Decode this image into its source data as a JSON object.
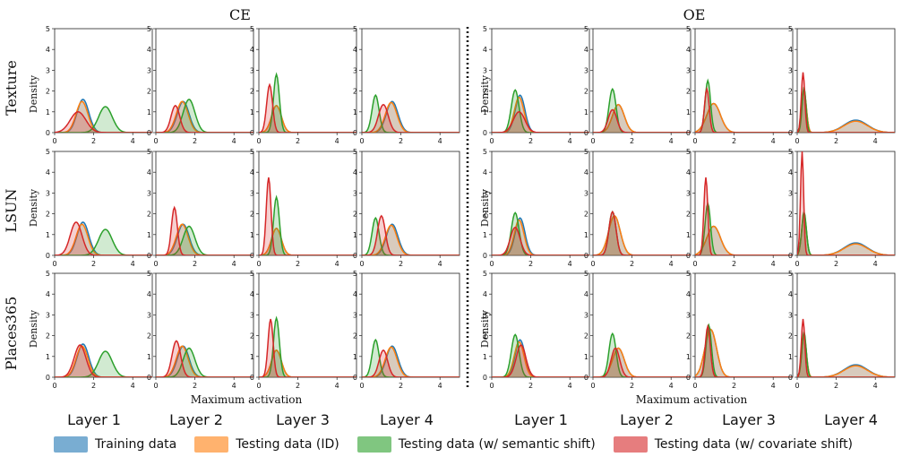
{
  "figure": {
    "methods": [
      "CE",
      "OE"
    ],
    "datasets": [
      "Texture",
      "LSUN",
      "Places365"
    ],
    "layers": [
      "Layer 1",
      "Layer 2",
      "Layer 3",
      "Layer 4"
    ],
    "ylabel": "Density",
    "xlabel": "Maximum activation"
  },
  "legend": [
    {
      "label": "Training data",
      "color": "#1f77b4"
    },
    {
      "label": "Testing data (ID)",
      "color": "#ff7f0e"
    },
    {
      "label": "Testing data (w/ semantic shift)",
      "color": "#2ca02c"
    },
    {
      "label": "Testing data (w/ covariate shift)",
      "color": "#d62728"
    }
  ],
  "chart_data": {
    "type": "area",
    "description_key": "kernel density curves; each curve given as peak location (mu), width (sigma) and peak density (h); OE layer-4 training/ID curves also have a second bump (mu2, sigma2, h2)",
    "xlim": [
      0,
      5
    ],
    "ylim": [
      0,
      5
    ],
    "xticks": [
      0,
      2,
      4
    ],
    "yticks": [
      0,
      1,
      2,
      3,
      4,
      5
    ],
    "series_names": [
      "Training data",
      "Testing data (ID)",
      "Testing data (w/ semantic shift)",
      "Testing data (w/ covariate shift)"
    ],
    "panels": [
      {
        "method": "CE",
        "dataset": "Texture",
        "layer": "Layer 1",
        "curves": [
          {
            "mu": 1.45,
            "sigma": 0.3,
            "h": 1.6
          },
          {
            "mu": 1.4,
            "sigma": 0.3,
            "h": 1.5
          },
          {
            "mu": 2.6,
            "sigma": 0.35,
            "h": 1.25
          },
          {
            "mu": 1.2,
            "sigma": 0.4,
            "h": 1.0
          }
        ]
      },
      {
        "method": "CE",
        "dataset": "Texture",
        "layer": "Layer 2",
        "curves": [
          {
            "mu": 1.4,
            "sigma": 0.3,
            "h": 1.5
          },
          {
            "mu": 1.35,
            "sigma": 0.3,
            "h": 1.5
          },
          {
            "mu": 1.7,
            "sigma": 0.3,
            "h": 1.6
          },
          {
            "mu": 1.0,
            "sigma": 0.22,
            "h": 1.3
          }
        ]
      },
      {
        "method": "CE",
        "dataset": "Texture",
        "layer": "Layer 3",
        "curves": [
          {
            "mu": 0.9,
            "sigma": 0.25,
            "h": 1.3
          },
          {
            "mu": 0.9,
            "sigma": 0.25,
            "h": 1.3
          },
          {
            "mu": 0.9,
            "sigma": 0.15,
            "h": 2.8
          },
          {
            "mu": 0.55,
            "sigma": 0.15,
            "h": 2.3
          }
        ]
      },
      {
        "method": "CE",
        "dataset": "Texture",
        "layer": "Layer 4",
        "curves": [
          {
            "mu": 1.55,
            "sigma": 0.3,
            "h": 1.5
          },
          {
            "mu": 1.5,
            "sigma": 0.3,
            "h": 1.45
          },
          {
            "mu": 0.7,
            "sigma": 0.18,
            "h": 1.8
          },
          {
            "mu": 1.1,
            "sigma": 0.25,
            "h": 1.35
          }
        ]
      },
      {
        "method": "OE",
        "dataset": "Texture",
        "layer": "Layer 1",
        "curves": [
          {
            "mu": 1.45,
            "sigma": 0.25,
            "h": 1.8
          },
          {
            "mu": 1.4,
            "sigma": 0.25,
            "h": 1.7
          },
          {
            "mu": 1.2,
            "sigma": 0.2,
            "h": 2.05
          },
          {
            "mu": 1.4,
            "sigma": 0.3,
            "h": 1.0
          }
        ]
      },
      {
        "method": "OE",
        "dataset": "Texture",
        "layer": "Layer 2",
        "curves": [
          {
            "mu": 1.3,
            "sigma": 0.3,
            "h": 1.35
          },
          {
            "mu": 1.3,
            "sigma": 0.3,
            "h": 1.35
          },
          {
            "mu": 1.0,
            "sigma": 0.18,
            "h": 2.1
          },
          {
            "mu": 1.0,
            "sigma": 0.22,
            "h": 1.1
          }
        ]
      },
      {
        "method": "OE",
        "dataset": "Texture",
        "layer": "Layer 3",
        "curves": [
          {
            "mu": 0.95,
            "sigma": 0.35,
            "h": 1.4
          },
          {
            "mu": 0.95,
            "sigma": 0.35,
            "h": 1.4
          },
          {
            "mu": 0.65,
            "sigma": 0.14,
            "h": 2.5
          },
          {
            "mu": 0.6,
            "sigma": 0.12,
            "h": 2.1
          }
        ]
      },
      {
        "method": "OE",
        "dataset": "Texture",
        "layer": "Layer 4",
        "curves": [
          {
            "mu": 0.35,
            "sigma": 0.12,
            "h": 2.0,
            "mu2": 3.0,
            "sigma2": 0.6,
            "h2": 0.6
          },
          {
            "mu": 0.35,
            "sigma": 0.12,
            "h": 2.0,
            "mu2": 3.0,
            "sigma2": 0.6,
            "h2": 0.55
          },
          {
            "mu": 0.35,
            "sigma": 0.1,
            "h": 2.2
          },
          {
            "mu": 0.3,
            "sigma": 0.09,
            "h": 2.9
          }
        ]
      },
      {
        "method": "CE",
        "dataset": "LSUN",
        "layer": "Layer 1",
        "curves": [
          {
            "mu": 1.45,
            "sigma": 0.3,
            "h": 1.6
          },
          {
            "mu": 1.4,
            "sigma": 0.3,
            "h": 1.5
          },
          {
            "mu": 2.6,
            "sigma": 0.35,
            "h": 1.25
          },
          {
            "mu": 1.1,
            "sigma": 0.3,
            "h": 1.6
          }
        ]
      },
      {
        "method": "CE",
        "dataset": "LSUN",
        "layer": "Layer 2",
        "curves": [
          {
            "mu": 1.4,
            "sigma": 0.3,
            "h": 1.5
          },
          {
            "mu": 1.35,
            "sigma": 0.3,
            "h": 1.5
          },
          {
            "mu": 1.7,
            "sigma": 0.3,
            "h": 1.4
          },
          {
            "mu": 0.95,
            "sigma": 0.15,
            "h": 2.3
          }
        ]
      },
      {
        "method": "CE",
        "dataset": "LSUN",
        "layer": "Layer 3",
        "curves": [
          {
            "mu": 0.9,
            "sigma": 0.25,
            "h": 1.3
          },
          {
            "mu": 0.9,
            "sigma": 0.25,
            "h": 1.3
          },
          {
            "mu": 0.9,
            "sigma": 0.15,
            "h": 2.8
          },
          {
            "mu": 0.5,
            "sigma": 0.12,
            "h": 3.75
          }
        ]
      },
      {
        "method": "CE",
        "dataset": "LSUN",
        "layer": "Layer 4",
        "curves": [
          {
            "mu": 1.55,
            "sigma": 0.3,
            "h": 1.5
          },
          {
            "mu": 1.5,
            "sigma": 0.3,
            "h": 1.45
          },
          {
            "mu": 0.7,
            "sigma": 0.18,
            "h": 1.8
          },
          {
            "mu": 1.0,
            "sigma": 0.2,
            "h": 1.9
          }
        ]
      },
      {
        "method": "OE",
        "dataset": "LSUN",
        "layer": "Layer 1",
        "curves": [
          {
            "mu": 1.45,
            "sigma": 0.25,
            "h": 1.8
          },
          {
            "mu": 1.4,
            "sigma": 0.25,
            "h": 1.7
          },
          {
            "mu": 1.2,
            "sigma": 0.2,
            "h": 2.05
          },
          {
            "mu": 1.2,
            "sigma": 0.25,
            "h": 1.35
          }
        ]
      },
      {
        "method": "OE",
        "dataset": "LSUN",
        "layer": "Layer 2",
        "curves": [
          {
            "mu": 1.1,
            "sigma": 0.3,
            "h": 1.9
          },
          {
            "mu": 1.1,
            "sigma": 0.3,
            "h": 1.9
          },
          {
            "mu": 1.0,
            "sigma": 0.18,
            "h": 2.1
          },
          {
            "mu": 1.0,
            "sigma": 0.18,
            "h": 2.1
          }
        ]
      },
      {
        "method": "OE",
        "dataset": "LSUN",
        "layer": "Layer 3",
        "curves": [
          {
            "mu": 0.95,
            "sigma": 0.35,
            "h": 1.4
          },
          {
            "mu": 0.95,
            "sigma": 0.35,
            "h": 1.4
          },
          {
            "mu": 0.65,
            "sigma": 0.14,
            "h": 2.5
          },
          {
            "mu": 0.55,
            "sigma": 0.1,
            "h": 3.75
          }
        ]
      },
      {
        "method": "OE",
        "dataset": "LSUN",
        "layer": "Layer 4",
        "curves": [
          {
            "mu": 0.35,
            "sigma": 0.12,
            "h": 2.0,
            "mu2": 3.0,
            "sigma2": 0.6,
            "h2": 0.6
          },
          {
            "mu": 0.35,
            "sigma": 0.12,
            "h": 2.0,
            "mu2": 3.0,
            "sigma2": 0.6,
            "h2": 0.55
          },
          {
            "mu": 0.35,
            "sigma": 0.12,
            "h": 2.1
          },
          {
            "mu": 0.25,
            "sigma": 0.08,
            "h": 5.0
          }
        ]
      },
      {
        "method": "CE",
        "dataset": "Places365",
        "layer": "Layer 1",
        "curves": [
          {
            "mu": 1.45,
            "sigma": 0.3,
            "h": 1.6
          },
          {
            "mu": 1.4,
            "sigma": 0.3,
            "h": 1.5
          },
          {
            "mu": 2.6,
            "sigma": 0.35,
            "h": 1.25
          },
          {
            "mu": 1.3,
            "sigma": 0.3,
            "h": 1.55
          }
        ]
      },
      {
        "method": "CE",
        "dataset": "Places365",
        "layer": "Layer 2",
        "curves": [
          {
            "mu": 1.4,
            "sigma": 0.3,
            "h": 1.5
          },
          {
            "mu": 1.35,
            "sigma": 0.3,
            "h": 1.5
          },
          {
            "mu": 1.7,
            "sigma": 0.3,
            "h": 1.4
          },
          {
            "mu": 1.05,
            "sigma": 0.22,
            "h": 1.75
          }
        ]
      },
      {
        "method": "CE",
        "dataset": "Places365",
        "layer": "Layer 3",
        "curves": [
          {
            "mu": 0.9,
            "sigma": 0.25,
            "h": 1.3
          },
          {
            "mu": 0.9,
            "sigma": 0.25,
            "h": 1.3
          },
          {
            "mu": 0.9,
            "sigma": 0.15,
            "h": 2.85
          },
          {
            "mu": 0.6,
            "sigma": 0.13,
            "h": 2.8
          }
        ]
      },
      {
        "method": "CE",
        "dataset": "Places365",
        "layer": "Layer 4",
        "curves": [
          {
            "mu": 1.55,
            "sigma": 0.3,
            "h": 1.5
          },
          {
            "mu": 1.5,
            "sigma": 0.3,
            "h": 1.45
          },
          {
            "mu": 0.7,
            "sigma": 0.18,
            "h": 1.8
          },
          {
            "mu": 1.1,
            "sigma": 0.22,
            "h": 1.3
          }
        ]
      },
      {
        "method": "OE",
        "dataset": "Places365",
        "layer": "Layer 1",
        "curves": [
          {
            "mu": 1.45,
            "sigma": 0.25,
            "h": 1.8
          },
          {
            "mu": 1.4,
            "sigma": 0.25,
            "h": 1.7
          },
          {
            "mu": 1.2,
            "sigma": 0.2,
            "h": 2.05
          },
          {
            "mu": 1.5,
            "sigma": 0.25,
            "h": 1.55
          }
        ]
      },
      {
        "method": "OE",
        "dataset": "Places365",
        "layer": "Layer 2",
        "curves": [
          {
            "mu": 1.3,
            "sigma": 0.3,
            "h": 1.4
          },
          {
            "mu": 1.3,
            "sigma": 0.3,
            "h": 1.4
          },
          {
            "mu": 1.0,
            "sigma": 0.18,
            "h": 2.1
          },
          {
            "mu": 1.15,
            "sigma": 0.22,
            "h": 1.4
          }
        ]
      },
      {
        "method": "OE",
        "dataset": "Places365",
        "layer": "Layer 3",
        "curves": [
          {
            "mu": 0.8,
            "sigma": 0.3,
            "h": 2.3
          },
          {
            "mu": 0.8,
            "sigma": 0.3,
            "h": 2.3
          },
          {
            "mu": 0.7,
            "sigma": 0.14,
            "h": 2.5
          },
          {
            "mu": 0.65,
            "sigma": 0.13,
            "h": 2.45
          }
        ]
      },
      {
        "method": "OE",
        "dataset": "Places365",
        "layer": "Layer 4",
        "curves": [
          {
            "mu": 0.35,
            "sigma": 0.12,
            "h": 2.0,
            "mu2": 3.0,
            "sigma2": 0.6,
            "h2": 0.6
          },
          {
            "mu": 0.35,
            "sigma": 0.12,
            "h": 2.0,
            "mu2": 3.0,
            "sigma2": 0.6,
            "h2": 0.55
          },
          {
            "mu": 0.35,
            "sigma": 0.11,
            "h": 2.2
          },
          {
            "mu": 0.3,
            "sigma": 0.09,
            "h": 2.8
          }
        ]
      }
    ]
  }
}
